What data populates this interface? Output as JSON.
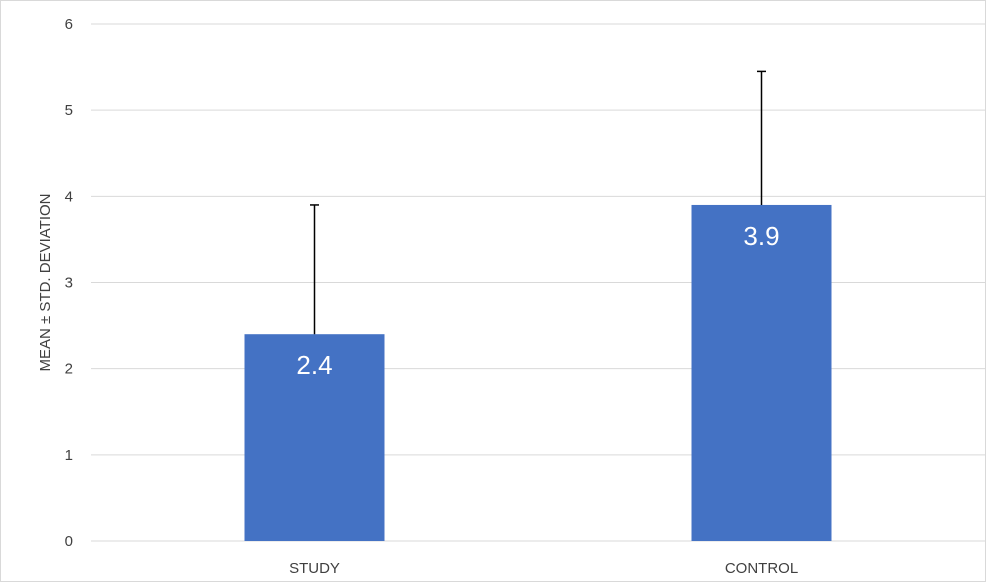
{
  "chart_data": {
    "type": "bar",
    "categories": [
      "STUDY",
      "CONTROL"
    ],
    "values": [
      2.4,
      3.9
    ],
    "error_plus": [
      1.5,
      1.55
    ],
    "data_labels": [
      "2.4",
      "3.9"
    ],
    "yticks": [
      "0",
      "1",
      "2",
      "3",
      "4",
      "5",
      "6"
    ],
    "ylim": [
      0,
      6
    ],
    "ylabel": "MEAN ± STD. DEVIATION",
    "xlabel": "",
    "title": "",
    "grid": true,
    "bar_color": "#4472c4",
    "error_color": "#000000",
    "grid_color": "#d9d9d9"
  }
}
